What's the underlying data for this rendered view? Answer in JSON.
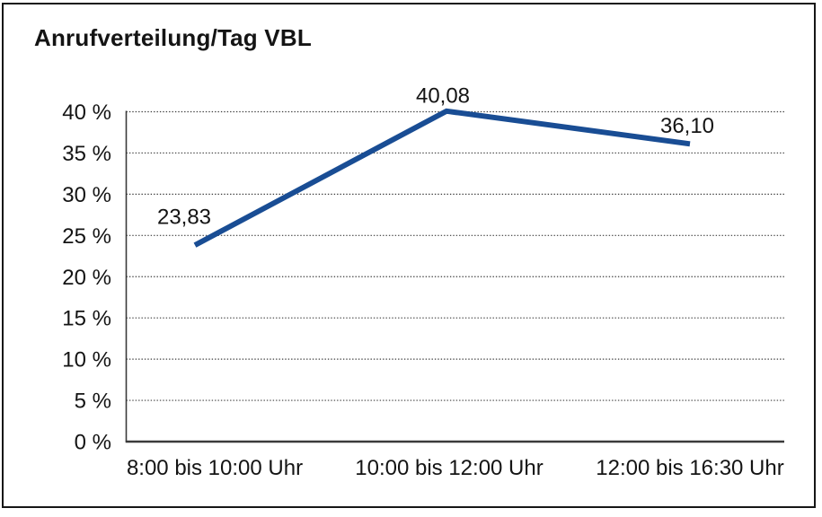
{
  "title": "Anrufverteilung/Tag VBL",
  "chart_data": {
    "type": "line",
    "title": "Anrufverteilung/Tag VBL",
    "categories": [
      "8:00 bis 10:00 Uhr",
      "10:00 bis 12:00 Uhr",
      "12:00 bis 16:30 Uhr"
    ],
    "series": [
      {
        "name": "Anrufverteilung",
        "values": [
          23.83,
          40.08,
          36.1
        ],
        "point_labels": [
          "23,83",
          "40,08",
          "36,10"
        ]
      }
    ],
    "xlabel": "",
    "ylabel": "",
    "ylim": [
      0,
      40
    ],
    "ytick_step": 5,
    "ytick_values": [
      0,
      5,
      10,
      15,
      20,
      25,
      30,
      35,
      40
    ],
    "ytick_labels": [
      "0 %",
      "5 %",
      "10 %",
      "15 %",
      "20 %",
      "25 %",
      "30 %",
      "35 %",
      "40 %"
    ],
    "grid": "horizontal-dotted",
    "legend": "none",
    "colors": {
      "line": "#194D94",
      "axis": "#3a3a3a",
      "gridline": "#3d3d3d",
      "text": "#141414",
      "border": "#161616",
      "background": "#ffffff"
    }
  }
}
